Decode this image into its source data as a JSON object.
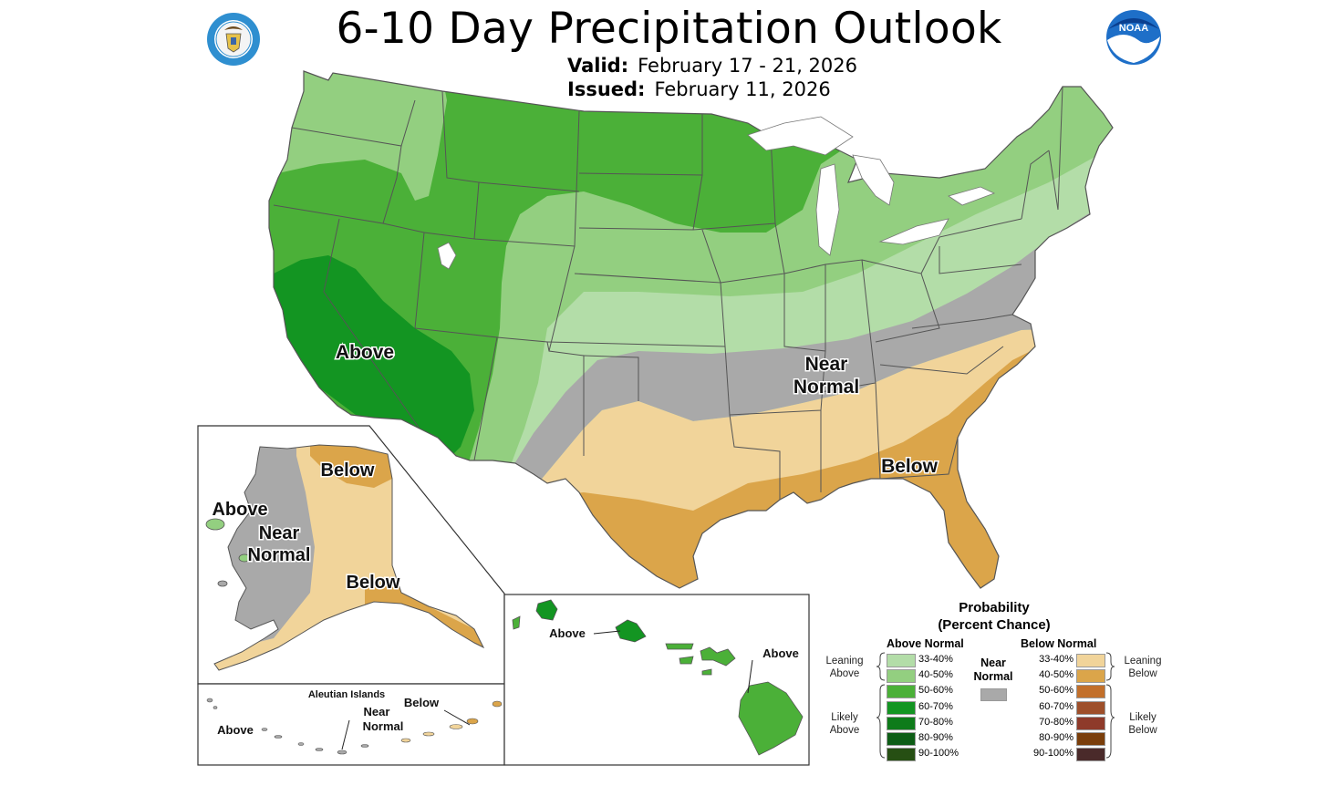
{
  "title": "6-10 Day Precipitation Outlook",
  "valid": {
    "label": "Valid:",
    "value": "February 17 - 21, 2026"
  },
  "issued": {
    "label": "Issued:",
    "value": "February 11, 2026"
  },
  "logos": {
    "left": "commerce-seal-icon",
    "right": "noaa-logo-icon"
  },
  "map_labels": {
    "conus_above": "Above",
    "conus_near_1": "Near",
    "conus_near_2": "Normal",
    "conus_below": "Below",
    "ak_below_north": "Below",
    "ak_above": "Above",
    "ak_near_1": "Near",
    "ak_near_2": "Normal",
    "ak_below_south": "Below",
    "aleutian_title": "Aleutian Islands",
    "aleutian_above": "Above",
    "aleutian_near_1": "Near",
    "aleutian_near_2": "Normal",
    "aleutian_below": "Below",
    "hi_above_left": "Above",
    "hi_above_right": "Above"
  },
  "legend": {
    "title_1": "Probability",
    "title_2": "(Percent Chance)",
    "above_header": "Above Normal",
    "below_header": "Below Normal",
    "near_1": "Near",
    "near_2": "Normal",
    "leaning_above_1": "Leaning",
    "leaning_above_2": "Above",
    "likely_above_1": "Likely",
    "likely_above_2": "Above",
    "leaning_below_1": "Leaning",
    "leaning_below_2": "Below",
    "likely_below_1": "Likely",
    "likely_below_2": "Below",
    "above_bins": [
      "33-40%",
      "40-50%",
      "50-60%",
      "60-70%",
      "70-80%",
      "80-90%",
      "90-100%"
    ],
    "below_bins": [
      "33-40%",
      "40-50%",
      "50-60%",
      "60-70%",
      "70-80%",
      "80-90%",
      "90-100%"
    ],
    "above_colors": [
      "#b3dda8",
      "#93cf80",
      "#4bb038",
      "#139522",
      "#0e7b1a",
      "#0d5d16",
      "#264f13"
    ],
    "below_colors": [
      "#f1d49a",
      "#dba54a",
      "#c26f2a",
      "#9e4f2a",
      "#8e3a2a",
      "#7a3e0b",
      "#4a2a2a"
    ],
    "near_color": "#a9a9a9"
  }
}
